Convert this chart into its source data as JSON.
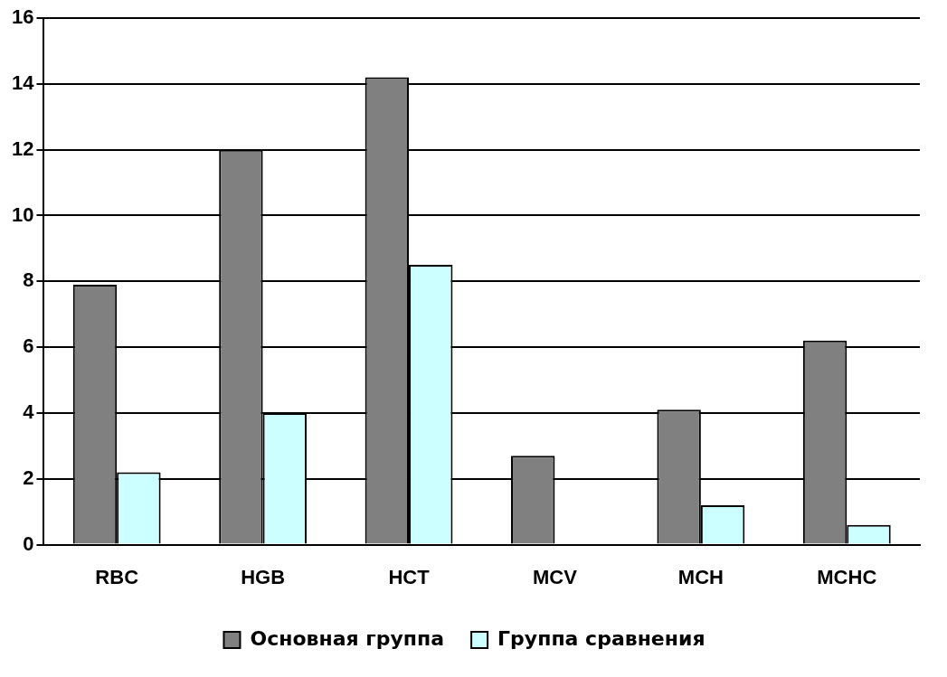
{
  "chart_data": {
    "type": "bar",
    "categories": [
      "RBC",
      "HGB",
      "HCT",
      "MCV",
      "MCH",
      "MCHC"
    ],
    "series": [
      {
        "name": "Основная группа",
        "color": "#808080",
        "values": [
          7.9,
          12.0,
          14.2,
          2.7,
          4.1,
          6.2
        ]
      },
      {
        "name": "Группа сравнения",
        "color": "#ccffff",
        "values": [
          2.2,
          4.0,
          8.5,
          0,
          1.2,
          0.6
        ]
      }
    ],
    "ylim": [
      0,
      16
    ],
    "yticks": [
      0,
      2,
      4,
      6,
      8,
      10,
      12,
      14,
      16
    ],
    "grid": "y",
    "legend": "bottom"
  }
}
